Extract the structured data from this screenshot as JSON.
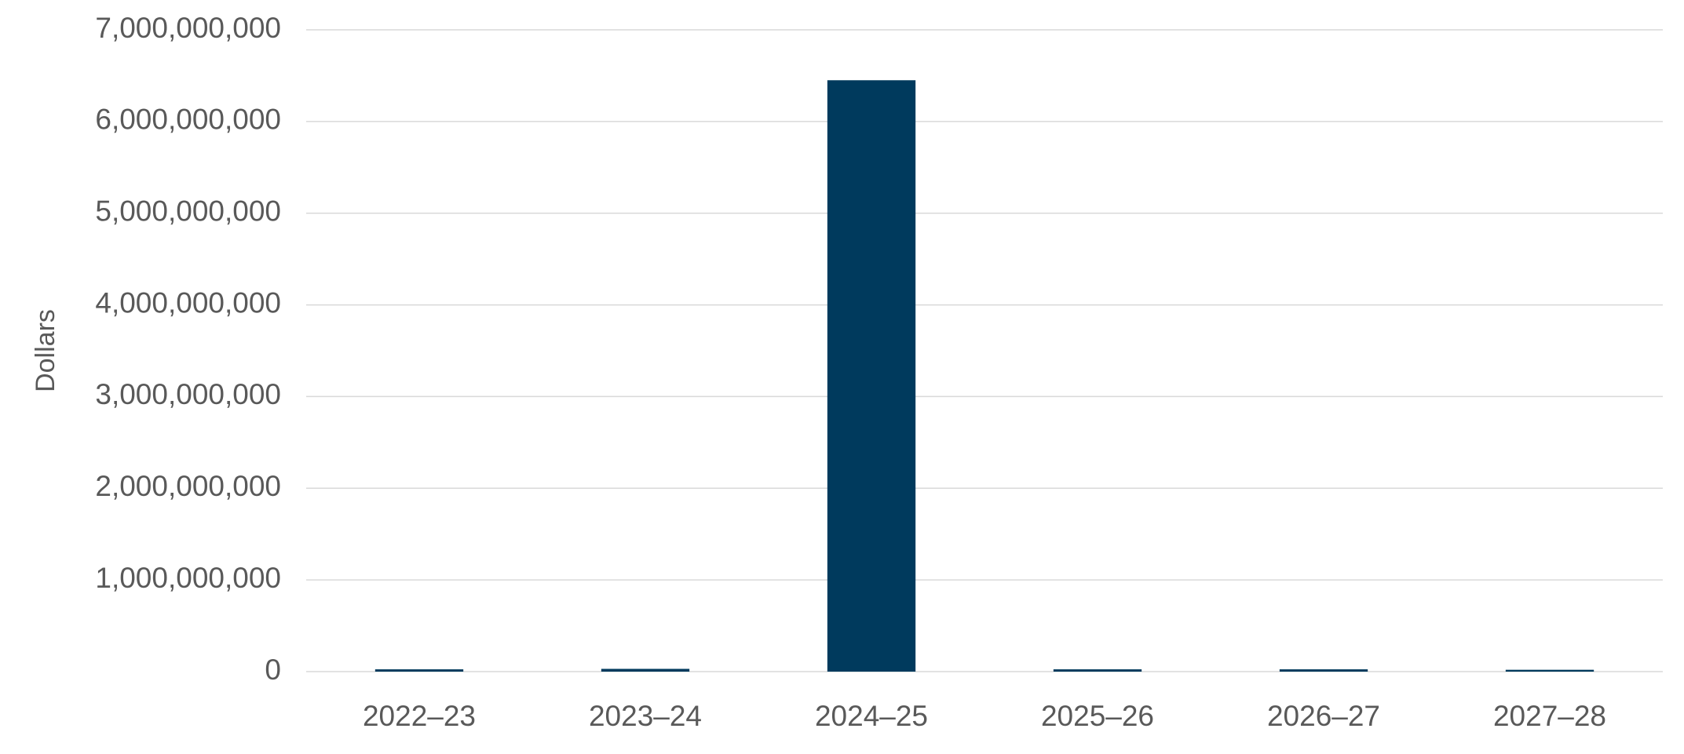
{
  "chart_data": {
    "type": "bar",
    "y_label": "Dollars",
    "categories": [
      "2022–23",
      "2023–24",
      "2024–25",
      "2025–26",
      "2026–27",
      "2027–28"
    ],
    "values": [
      25000000,
      30000000,
      6450000000,
      25000000,
      25000000,
      20000000
    ],
    "color": "#003a5d",
    "ylim": [
      0,
      7000000000
    ],
    "yticks": [
      0,
      {
        "value": 1000000000,
        "label": "1,000,000,000"
      },
      {
        "value": 2000000000,
        "label": "2,000,000,000"
      },
      {
        "value": 3000000000,
        "label": "3,000,000,000"
      },
      {
        "value": 4000000000,
        "label": "4,000,000,000"
      },
      {
        "value": 5000000000,
        "label": "5,000,000,000"
      },
      {
        "value": 6000000000,
        "label": "6,000,000,000"
      },
      {
        "value": 7000000000,
        "label": "7,000,000,000"
      }
    ],
    "grid": true
  }
}
